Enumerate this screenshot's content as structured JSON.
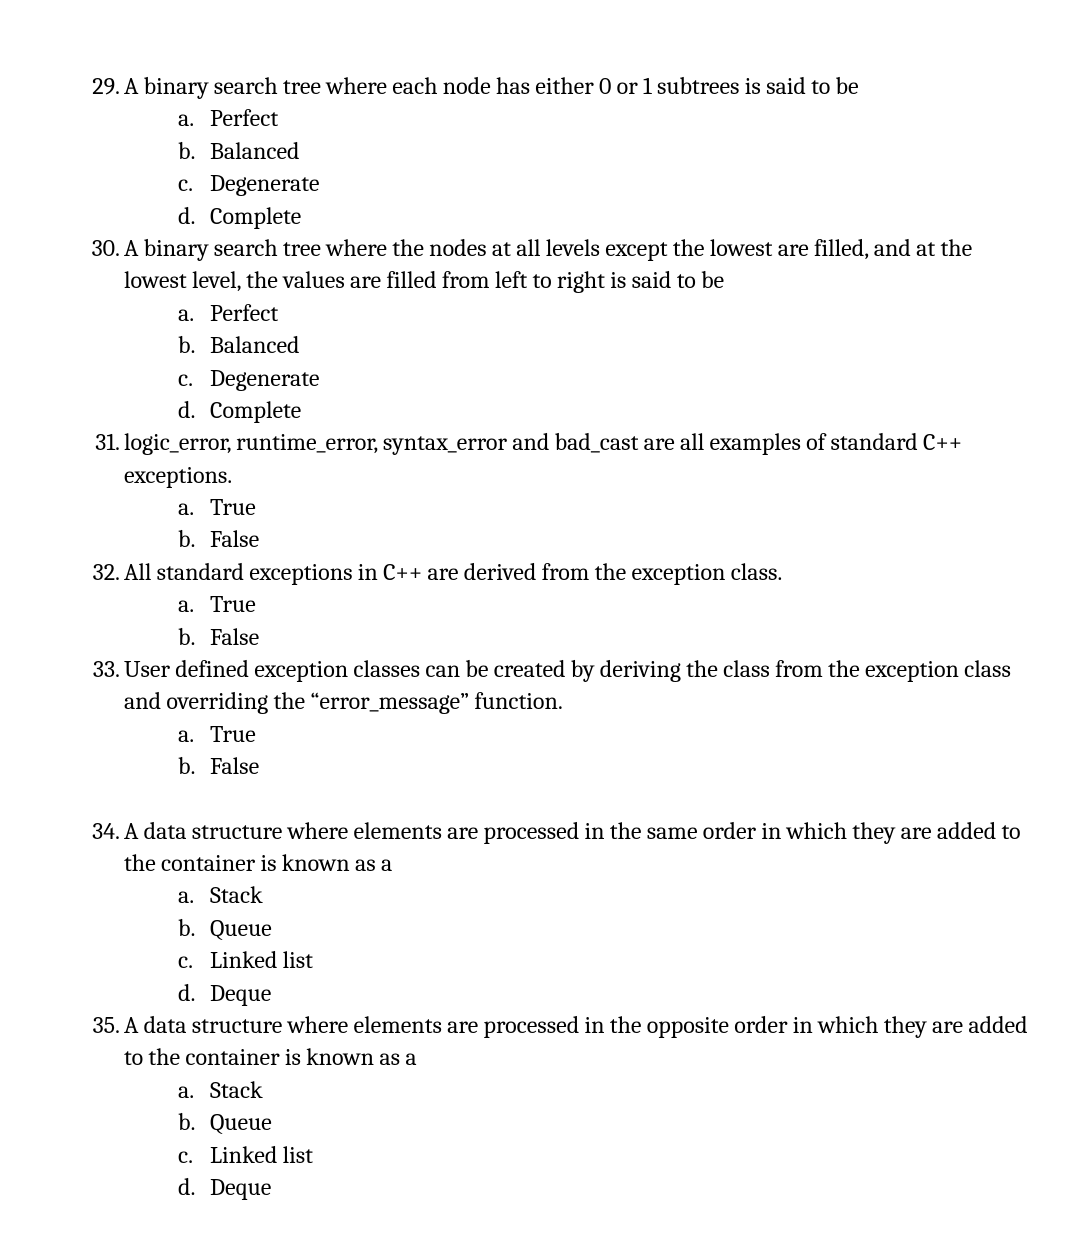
{
  "font_family": "Cambria, Georgia, 'Times New Roman', serif",
  "font_size_pt": 18,
  "text_color": "#000000",
  "background_color": "#ffffff",
  "questions": [
    {
      "number": "29.",
      "text": "A binary search tree where each node has either 0 or 1 subtrees is said to be",
      "options": [
        {
          "letter": "a.",
          "text": "Perfect"
        },
        {
          "letter": "b.",
          "text": "Balanced"
        },
        {
          "letter": "c.",
          "text": "Degenerate"
        },
        {
          "letter": "d.",
          "text": "Complete"
        }
      ],
      "gap_after": false
    },
    {
      "number": "30.",
      "text": "A binary search tree where the nodes at all levels except the lowest are filled, and at the lowest level, the values are filled from left to right is said to be",
      "options": [
        {
          "letter": "a.",
          "text": "Perfect"
        },
        {
          "letter": "b.",
          "text": "Balanced"
        },
        {
          "letter": "c.",
          "text": "Degenerate"
        },
        {
          "letter": "d.",
          "text": "Complete"
        }
      ],
      "gap_after": false
    },
    {
      "number": "31.",
      "text": "logic_error, runtime_error, syntax_error and bad_cast are all examples of standard C++ exceptions.",
      "options": [
        {
          "letter": "a.",
          "text": "True"
        },
        {
          "letter": "b.",
          "text": "False"
        }
      ],
      "gap_after": false
    },
    {
      "number": "32.",
      "text": "All standard exceptions in C++ are derived from the exception class.",
      "options": [
        {
          "letter": "a.",
          "text": "True"
        },
        {
          "letter": "b.",
          "text": "False"
        }
      ],
      "gap_after": false
    },
    {
      "number": "33.",
      "text": "User defined exception classes can be created by deriving the class from the exception class and overriding the “error_message” function.",
      "options": [
        {
          "letter": "a.",
          "text": "True"
        },
        {
          "letter": "b.",
          "text": "False"
        }
      ],
      "gap_after": true
    },
    {
      "number": "34.",
      "text": "A data structure where elements are processed in the same order in which they are added to the container is known as a",
      "options": [
        {
          "letter": "a.",
          "text": "Stack"
        },
        {
          "letter": "b.",
          "text": "Queue"
        },
        {
          "letter": "c.",
          "text": "Linked list"
        },
        {
          "letter": "d.",
          "text": "Deque"
        }
      ],
      "gap_after": false
    },
    {
      "number": "35.",
      "text": "A data structure where elements are processed in the opposite order in which they are added to the container is known as a",
      "options": [
        {
          "letter": "a.",
          "text": "Stack"
        },
        {
          "letter": "b.",
          "text": "Queue"
        },
        {
          "letter": "c.",
          "text": "Linked list"
        },
        {
          "letter": "d.",
          "text": "Deque"
        }
      ],
      "gap_after": false
    }
  ]
}
